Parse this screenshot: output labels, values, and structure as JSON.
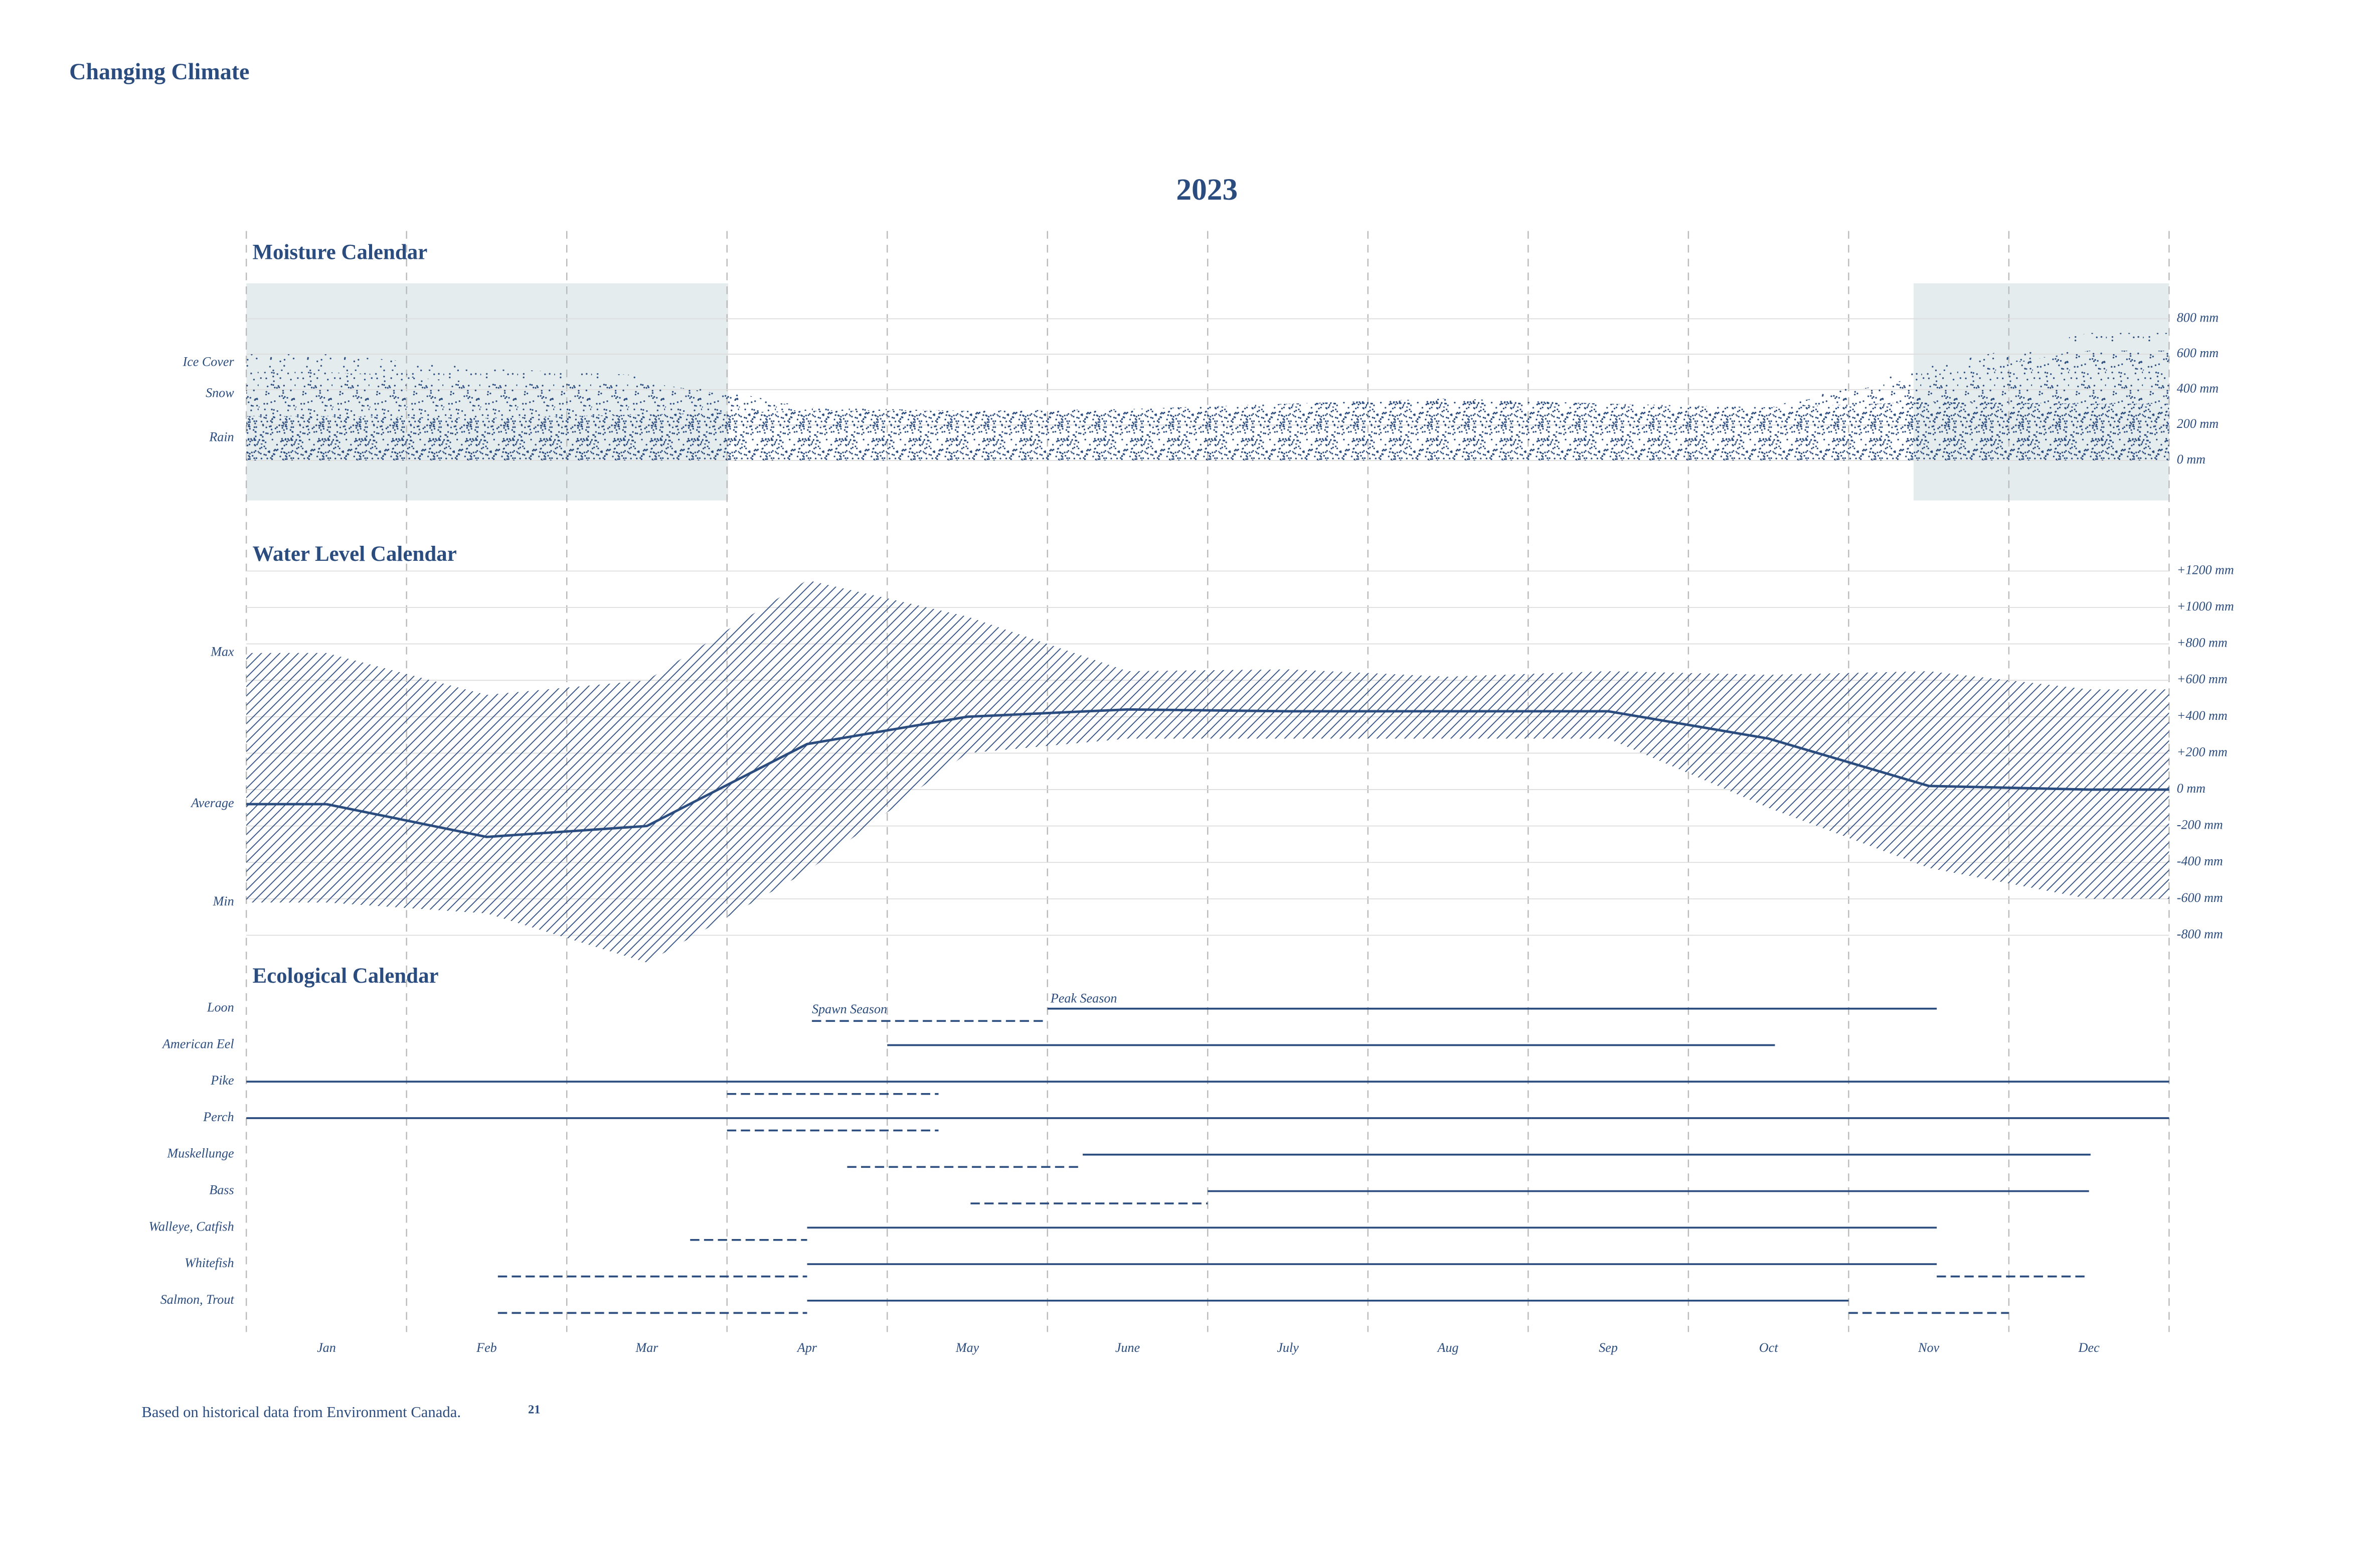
{
  "title": "Changing Climate",
  "year": "2023",
  "categories": [
    "Jan",
    "Feb",
    "Mar",
    "Apr",
    "May",
    "June",
    "July",
    "Aug",
    "Sep",
    "Oct",
    "Nov",
    "Dec"
  ],
  "footnote": "Based on historical data from Environment Canada.",
  "page_number": "21",
  "chart_data": [
    {
      "type": "stacked_area",
      "title": "Moisture Calendar",
      "ylim": [
        -200,
        1000
      ],
      "yticks": [
        {
          "value": 0,
          "label": "0 mm"
        },
        {
          "value": 200,
          "label": "200 mm"
        },
        {
          "value": 400,
          "label": "400 mm"
        },
        {
          "value": 600,
          "label": "600 mm"
        },
        {
          "value": 800,
          "label": "800 mm"
        }
      ],
      "grid": true,
      "series": [
        {
          "name": "Rain",
          "color": "#2b4c7e",
          "values": [
            250,
            240,
            260,
            280,
            280,
            290,
            320,
            350,
            320,
            300,
            330,
            320
          ]
        },
        {
          "name": "Snow",
          "color": "#2b4c7e",
          "values": [
            250,
            200,
            180,
            20,
            0,
            0,
            0,
            0,
            0,
            0,
            150,
            300
          ]
        },
        {
          "name": "Ice Cover",
          "color": "#2b4c7e",
          "values": [
            100,
            80,
            40,
            0,
            0,
            0,
            0,
            0,
            0,
            0,
            50,
            100
          ]
        }
      ]
    },
    {
      "type": "band_line",
      "title": "Water Level Calendar",
      "ylim": [
        -1000,
        1300
      ],
      "yticks": [
        {
          "value": 1200,
          "label": "+1200 mm"
        },
        {
          "value": 1000,
          "label": "+1000 mm"
        },
        {
          "value": 800,
          "label": "+800 mm"
        },
        {
          "value": 600,
          "label": "+600 mm"
        },
        {
          "value": 400,
          "label": "+400 mm"
        },
        {
          "value": 200,
          "label": "+200 mm"
        },
        {
          "value": 0,
          "label": "0 mm"
        },
        {
          "value": -200,
          "label": "-200 mm"
        },
        {
          "value": -400,
          "label": "-400 mm"
        },
        {
          "value": -600,
          "label": "-600 mm"
        },
        {
          "value": -800,
          "label": "-800 mm"
        }
      ],
      "grid": true,
      "series": [
        {
          "name": "Max",
          "color": "#2b4c7e",
          "values": [
            750,
            520,
            600,
            1150,
            950,
            650,
            660,
            620,
            650,
            630,
            650,
            550
          ]
        },
        {
          "name": "Average",
          "color": "#2b4c7e",
          "values": [
            -80,
            -260,
            -200,
            250,
            400,
            440,
            430,
            430,
            430,
            280,
            20,
            0
          ]
        },
        {
          "name": "Min",
          "color": "#2b4c7e",
          "values": [
            -620,
            -680,
            -950,
            -450,
            200,
            280,
            280,
            280,
            280,
            -100,
            -430,
            -600
          ]
        }
      ]
    },
    {
      "type": "gantt",
      "title": "Ecological Calendar",
      "color": "#2b4c7e",
      "annotations": [
        "Spawn Season",
        "Peak Season"
      ],
      "rows": [
        {
          "name": "Loon",
          "season": [
            5.0,
            10.55
          ],
          "spawn": [
            [
              3.53,
              5.0
            ]
          ]
        },
        {
          "name": "American Eel",
          "season": [
            4.0,
            9.54
          ],
          "spawn": []
        },
        {
          "name": "Pike",
          "season": [
            0,
            12
          ],
          "spawn": [
            [
              3.0,
              4.32
            ]
          ]
        },
        {
          "name": "Perch",
          "season": [
            0,
            12
          ],
          "spawn": [
            [
              3.0,
              4.32
            ]
          ]
        },
        {
          "name": "Muskellunge",
          "season": [
            5.22,
            11.51
          ],
          "spawn": [
            [
              3.75,
              5.22
            ]
          ]
        },
        {
          "name": "Bass",
          "season": [
            6.0,
            11.5
          ],
          "spawn": [
            [
              4.52,
              6.0
            ]
          ]
        },
        {
          "name": "Walleye, Catfish",
          "season": [
            3.5,
            10.55
          ],
          "spawn": [
            [
              2.77,
              3.5
            ]
          ]
        },
        {
          "name": "Whitefish",
          "season": [
            3.5,
            10.55
          ],
          "spawn": [
            [
              1.57,
              3.5
            ],
            [
              10.55,
              11.48
            ]
          ]
        },
        {
          "name": "Salmon, Trout",
          "season": [
            3.5,
            10.0
          ],
          "spawn": [
            [
              1.57,
              3.5
            ],
            [
              10.0,
              11.0
            ]
          ]
        }
      ]
    }
  ]
}
